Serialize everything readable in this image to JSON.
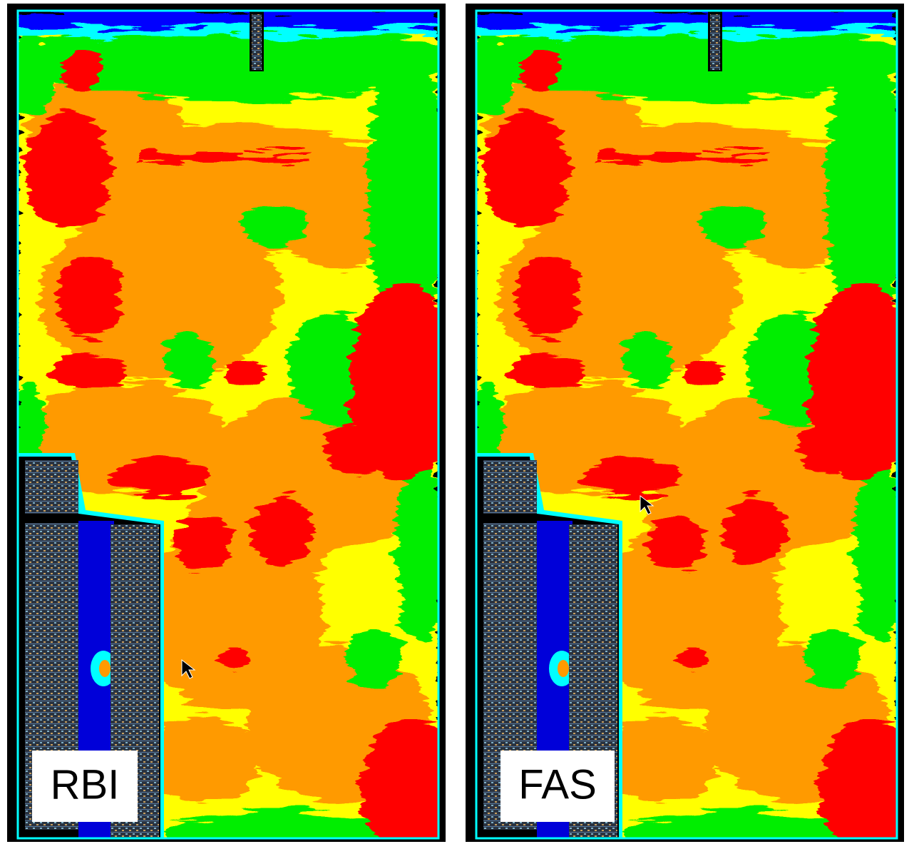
{
  "panels": [
    {
      "label": "RBI"
    },
    {
      "label": "FAS"
    }
  ]
}
